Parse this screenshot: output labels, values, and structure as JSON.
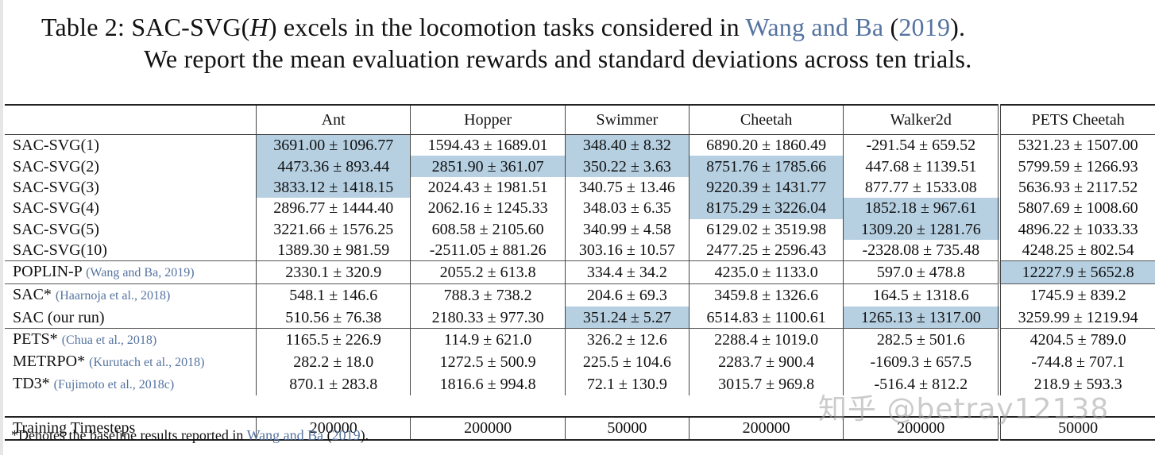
{
  "caption": {
    "label": "Table 2:",
    "text_a": "SAC-SVG(",
    "text_h": "H",
    "text_b": ") excels in the locomotion tasks considered in ",
    "cite_name": "Wang and Ba",
    "cite_open": " (",
    "cite_year": "2019",
    "cite_close": ").",
    "line2": "We report the mean evaluation rewards and standard deviations across ten trials."
  },
  "table": {
    "columns": [
      "Ant",
      "Hopper",
      "Swimmer",
      "Cheetah",
      "Walker2d",
      "PETS Cheetah"
    ],
    "groups": [
      {
        "rows": [
          {
            "name": "SAC-SVG(1)",
            "cite": "",
            "values": [
              "3691.00 ± 1096.77",
              "1594.43 ± 1689.01",
              "348.40 ± 8.32",
              "6890.20 ± 1860.49",
              "-291.54 ± 659.52",
              "5321.23 ± 1507.00"
            ],
            "highlight": [
              true,
              false,
              true,
              false,
              false,
              false
            ]
          },
          {
            "name": "SAC-SVG(2)",
            "cite": "",
            "values": [
              "4473.36 ± 893.44",
              "2851.90 ± 361.07",
              "350.22 ± 3.63",
              "8751.76 ± 1785.66",
              "447.68 ± 1139.51",
              "5799.59 ± 1266.93"
            ],
            "highlight": [
              true,
              true,
              true,
              true,
              false,
              false
            ]
          },
          {
            "name": "SAC-SVG(3)",
            "cite": "",
            "values": [
              "3833.12 ± 1418.15",
              "2024.43 ± 1981.51",
              "340.75 ± 13.46",
              "9220.39 ± 1431.77",
              "877.77 ± 1533.08",
              "5636.93 ± 2117.52"
            ],
            "highlight": [
              true,
              false,
              false,
              true,
              false,
              false
            ]
          },
          {
            "name": "SAC-SVG(4)",
            "cite": "",
            "values": [
              "2896.77 ± 1444.40",
              "2062.16 ± 1245.33",
              "348.03 ± 6.35",
              "8175.29 ± 3226.04",
              "1852.18 ± 967.61",
              "5807.69 ± 1008.60"
            ],
            "highlight": [
              false,
              false,
              false,
              true,
              true,
              false
            ]
          },
          {
            "name": "SAC-SVG(5)",
            "cite": "",
            "values": [
              "3221.66 ± 1576.25",
              "608.58 ± 2105.60",
              "340.99 ± 4.58",
              "6129.02 ± 3519.98",
              "1309.20 ± 1281.76",
              "4896.22 ± 1033.33"
            ],
            "highlight": [
              false,
              false,
              false,
              false,
              true,
              false
            ]
          },
          {
            "name": "SAC-SVG(10)",
            "cite": "",
            "values": [
              "1389.30 ± 981.59",
              "-2511.05 ± 881.26",
              "303.16 ± 10.57",
              "2477.25 ± 2596.43",
              "-2328.08 ± 735.48",
              "4248.25 ± 802.54"
            ],
            "highlight": [
              false,
              false,
              false,
              false,
              false,
              false
            ]
          }
        ]
      },
      {
        "rows": [
          {
            "name": "POPLIN-P",
            "cite": "(Wang and Ba, 2019)",
            "values": [
              "2330.1 ± 320.9",
              "2055.2 ± 613.8",
              "334.4 ± 34.2",
              "4235.0 ± 1133.0",
              "597.0 ± 478.8",
              "12227.9 ± 5652.8"
            ],
            "highlight": [
              false,
              false,
              false,
              false,
              false,
              true
            ]
          }
        ]
      },
      {
        "rows": [
          {
            "name": "SAC*",
            "cite": "(Haarnoja et al., 2018)",
            "values": [
              "548.1 ± 146.6",
              "788.3 ± 738.2",
              "204.6 ± 69.3",
              "3459.8 ± 1326.6",
              "164.5 ± 1318.6",
              "1745.9 ± 839.2"
            ],
            "highlight": [
              false,
              false,
              false,
              false,
              false,
              false
            ]
          },
          {
            "name": "SAC (our run)",
            "cite": "",
            "values": [
              "510.56 ± 76.38",
              "2180.33 ± 977.30",
              "351.24 ± 5.27",
              "6514.83 ± 1100.61",
              "1265.13 ± 1317.00",
              "3259.99 ± 1219.94"
            ],
            "highlight": [
              false,
              false,
              true,
              false,
              true,
              false
            ]
          }
        ]
      },
      {
        "rows": [
          {
            "name": "PETS*",
            "cite": "(Chua et al., 2018)",
            "values": [
              "1165.5 ± 226.9",
              "114.9 ± 621.0",
              "326.2 ± 12.6",
              "2288.4 ± 1019.0",
              "282.5 ± 501.6",
              "4204.5 ± 789.0"
            ],
            "highlight": [
              false,
              false,
              false,
              false,
              false,
              false
            ]
          },
          {
            "name": "METRPO*",
            "cite": "(Kurutach et al., 2018)",
            "values": [
              "282.2 ± 18.0",
              "1272.5 ± 500.9",
              "225.5 ± 104.6",
              "2283.7 ± 900.4",
              "-1609.3 ± 657.5",
              "-744.8 ± 707.1"
            ],
            "highlight": [
              false,
              false,
              false,
              false,
              false,
              false
            ]
          },
          {
            "name": "TD3*",
            "cite": "(Fujimoto et al., 2018c)",
            "values": [
              "870.1 ± 283.8",
              "1816.6 ± 994.8",
              "72.1 ± 130.9",
              "3015.7 ± 969.8",
              "-516.4 ± 812.2",
              "218.9 ± 593.3"
            ],
            "highlight": [
              false,
              false,
              false,
              false,
              false,
              false
            ]
          }
        ]
      }
    ],
    "timesteps": {
      "label": "Training Timesteps",
      "values": [
        "200000",
        "200000",
        "50000",
        "200000",
        "200000",
        "50000"
      ]
    }
  },
  "footnote": {
    "text": "*Denotes the baseline results reported in ",
    "cite_name": "Wang and Ba",
    "cite_open": " (",
    "cite_year": "2019",
    "cite_close": ")."
  },
  "watermark": "知乎 @betray12138",
  "colors": {
    "highlight": "#b6d0e2",
    "citation": "#5573a0"
  }
}
